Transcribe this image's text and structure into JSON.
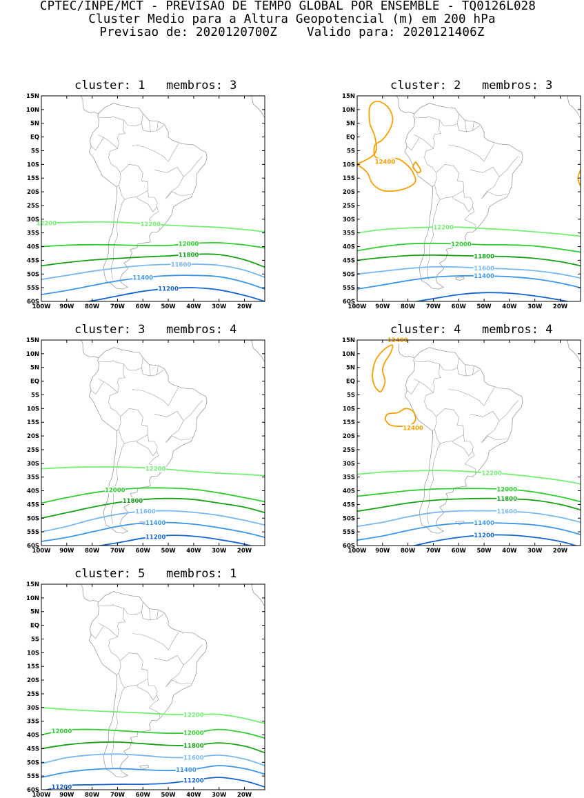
{
  "header": {
    "line1": "CPTEC/INPE/MCT - PREVISAO DE TEMPO GLOBAL POR ENSEMBLE - TQ0126L028",
    "line2": "Cluster Medio para a Altura Geopotencial (m) em 200 hPa",
    "line3": "Previsao de: 2020120700Z    Valido para: 2020121406Z"
  },
  "axes": {
    "lat_ticks": [
      "15N",
      "10N",
      "5N",
      "EQ",
      "5S",
      "10S",
      "15S",
      "20S",
      "25S",
      "30S",
      "35S",
      "40S",
      "45S",
      "50S",
      "55S",
      "60S"
    ],
    "lon_ticks": [
      "100W",
      "90W",
      "80W",
      "70W",
      "60W",
      "50W",
      "40W",
      "30W",
      "20W"
    ],
    "lat_range": [
      -60,
      15
    ],
    "lon_range": [
      -100,
      -12
    ]
  },
  "colors": {
    "c12400": "#f5a000",
    "c12200": "#74ef74",
    "c12000": "#2fcc2f",
    "c11800": "#15a015",
    "c11600": "#78b8f0",
    "c11400": "#3c96e8",
    "c11200": "#1464d2",
    "coast": "#9a9a9a"
  },
  "panels": [
    {
      "title": "cluster: 1   membros: 3",
      "lines": [
        {
          "level": "12200",
          "lat": [
            -31.5,
            -31.2,
            -31.0,
            -31.1,
            -31.6,
            -32.2,
            -32.6,
            -33.0,
            -33.8,
            -34.6
          ],
          "labels": [
            {
              "text": "12200",
              "lon": -98
            },
            {
              "text": "12200",
              "lon": -57
            }
          ]
        },
        {
          "level": "12000",
          "lat": [
            -40.0,
            -39.5,
            -39.3,
            -39.4,
            -39.6,
            -39.6,
            -38.8,
            -38.6,
            -39.4,
            -40.5
          ],
          "labels": [
            {
              "text": "12000",
              "lon": -42
            }
          ]
        },
        {
          "level": "11800",
          "lat": [
            -47.0,
            -45.8,
            -44.9,
            -44.3,
            -43.8,
            -43.4,
            -42.8,
            -42.9,
            -44.8,
            -47.5
          ],
          "labels": [
            {
              "text": "11800",
              "lon": -42
            }
          ]
        },
        {
          "level": "11600",
          "lat": [
            -52.0,
            -50.5,
            -49.0,
            -47.8,
            -46.9,
            -46.5,
            -46.4,
            -46.8,
            -48.6,
            -51.2
          ],
          "labels": [
            {
              "text": "11600",
              "lon": -45
            }
          ]
        },
        {
          "level": "11400",
          "lat": [
            -57.5,
            -56.0,
            -54.2,
            -52.5,
            -51.3,
            -50.6,
            -50.5,
            -51.0,
            -53.0,
            -55.5
          ],
          "labels": [
            {
              "text": "11400",
              "lon": -60
            }
          ]
        },
        {
          "level": "11200",
          "lat": [
            -62.0,
            -61.0,
            -59.8,
            -58.0,
            -56.3,
            -55.3,
            -55.0,
            -55.8,
            -57.8,
            -60.0
          ],
          "labels": [
            {
              "text": "11200",
              "lon": -50
            }
          ]
        }
      ],
      "closed": []
    },
    {
      "title": "cluster: 2   membros: 3",
      "lines": [
        {
          "level": "12200",
          "lat": [
            -35.0,
            -33.8,
            -33.2,
            -32.9,
            -32.9,
            -33.4,
            -33.9,
            -34.6,
            -35.4,
            -36.2
          ],
          "labels": [
            {
              "text": "12200",
              "lon": -66
            }
          ]
        },
        {
          "level": "12000",
          "lat": [
            -41.5,
            -40.0,
            -39.0,
            -38.8,
            -39.0,
            -39.3,
            -39.4,
            -39.8,
            -40.9,
            -42.0
          ],
          "labels": [
            {
              "text": "12000",
              "lon": -59
            }
          ]
        },
        {
          "level": "11800",
          "lat": [
            -45.0,
            -44.0,
            -43.3,
            -43.1,
            -43.3,
            -43.5,
            -43.7,
            -44.3,
            -45.5,
            -47.0
          ],
          "labels": [
            {
              "text": "11800",
              "lon": -50
            }
          ]
        },
        {
          "level": "11600",
          "lat": [
            -50.0,
            -49.0,
            -48.0,
            -47.4,
            -47.5,
            -47.9,
            -48.2,
            -48.8,
            -50.0,
            -51.5
          ],
          "labels": [
            {
              "text": "11600",
              "lon": -50
            }
          ]
        },
        {
          "level": "11400",
          "lat": [
            -55.5,
            -54.0,
            -52.4,
            -51.2,
            -50.7,
            -50.7,
            -51.0,
            -51.8,
            -53.3,
            -55.0
          ],
          "labels": [
            {
              "text": "11400",
              "lon": -50
            }
          ]
        },
        {
          "level": "11200",
          "lat": [
            -62.0,
            -61.5,
            -60.5,
            -59.0,
            -57.5,
            -56.8,
            -57.0,
            -58.0,
            -59.5,
            -61.0
          ],
          "labels": []
        }
      ],
      "closed": [
        {
          "level": "12400",
          "pts": [
            [
              -100,
              -10
            ],
            [
              -96,
              -13
            ],
            [
              -94,
              -17
            ],
            [
              -90,
              -19.5
            ],
            [
              -84,
              -19.5
            ],
            [
              -79,
              -18
            ],
            [
              -77,
              -16
            ],
            [
              -78,
              -13
            ],
            [
              -80,
              -10.5
            ],
            [
              -84,
              -8
            ],
            [
              -90,
              -8
            ],
            [
              -93,
              -7
            ],
            [
              -93,
              -3
            ],
            [
              -90,
              -1
            ],
            [
              -87,
              3
            ],
            [
              -86,
              7
            ],
            [
              -88,
              11
            ],
            [
              -92,
              13
            ],
            [
              -95,
              11
            ],
            [
              -95,
              5
            ],
            [
              -93,
              0
            ],
            [
              -93,
              -6
            ],
            [
              -100,
              -10
            ]
          ],
          "open": true,
          "labels": [
            {
              "text": "12400",
              "lon": -89,
              "lat": -9
            }
          ]
        },
        {
          "level": "12400",
          "pts": [
            [
              -77,
              -9
            ],
            [
              -75,
              -12
            ],
            [
              -76,
              -13
            ],
            [
              -78,
              -11
            ],
            [
              -77,
              -9
            ]
          ],
          "labels": []
        },
        {
          "level": "12400",
          "pts": [
            [
              -12,
              -12
            ],
            [
              -13,
              -15
            ],
            [
              -12,
              -18
            ]
          ],
          "open": true,
          "labels": []
        }
      ]
    },
    {
      "title": "cluster: 3   membros: 4",
      "lines": [
        {
          "level": "12200",
          "lat": [
            -32.0,
            -31.5,
            -31.3,
            -31.3,
            -31.6,
            -32.2,
            -33.0,
            -33.6,
            -34.0,
            -34.5
          ],
          "labels": [
            {
              "text": "12200",
              "lon": -55
            }
          ]
        },
        {
          "level": "12000",
          "lat": [
            -44.5,
            -42.5,
            -40.8,
            -39.6,
            -39.0,
            -39.0,
            -39.5,
            -40.8,
            -42.5,
            -44.0
          ],
          "labels": [
            {
              "text": "12000",
              "lon": -71
            }
          ]
        },
        {
          "level": "11800",
          "lat": [
            -50.0,
            -48.0,
            -46.0,
            -44.3,
            -43.2,
            -42.8,
            -43.2,
            -44.5,
            -46.0,
            -48.0
          ],
          "labels": [
            {
              "text": "11800",
              "lon": -64
            }
          ]
        },
        {
          "level": "11600",
          "lat": [
            -55.0,
            -53.0,
            -50.5,
            -48.6,
            -47.5,
            -47.3,
            -47.9,
            -49.0,
            -50.8,
            -52.5
          ],
          "labels": [
            {
              "text": "11600",
              "lon": -59
            }
          ]
        },
        {
          "level": "11400",
          "lat": [
            -58.5,
            -57.0,
            -55.0,
            -53.0,
            -51.8,
            -51.6,
            -52.2,
            -53.5,
            -55.2,
            -57.0
          ],
          "labels": [
            {
              "text": "11400",
              "lon": -55
            }
          ]
        },
        {
          "level": "11200",
          "lat": [
            -63.0,
            -62.0,
            -60.5,
            -59.0,
            -57.3,
            -56.3,
            -56.6,
            -57.8,
            -59.5,
            -61.5
          ],
          "labels": [
            {
              "text": "11200",
              "lon": -55
            }
          ]
        }
      ],
      "closed": []
    },
    {
      "title": "cluster: 4   membros: 4",
      "lines": [
        {
          "level": "12200",
          "lat": [
            -34.0,
            -33.2,
            -32.8,
            -32.6,
            -32.8,
            -33.4,
            -34.0,
            -35.0,
            -36.2,
            -37.5
          ],
          "labels": [
            {
              "text": "12200",
              "lon": -47
            }
          ]
        },
        {
          "level": "12000",
          "lat": [
            -42.0,
            -41.0,
            -40.0,
            -39.4,
            -39.2,
            -39.2,
            -39.5,
            -40.5,
            -42.2,
            -44.0
          ],
          "labels": [
            {
              "text": "12000",
              "lon": -41
            }
          ]
        },
        {
          "level": "11800",
          "lat": [
            -47.5,
            -46.0,
            -44.5,
            -43.5,
            -43.0,
            -42.8,
            -42.9,
            -43.5,
            -45.0,
            -47.0
          ],
          "labels": [
            {
              "text": "11800",
              "lon": -41
            }
          ]
        },
        {
          "level": "11600",
          "lat": [
            -53.0,
            -51.5,
            -49.5,
            -48.0,
            -47.4,
            -47.3,
            -47.5,
            -48.2,
            -49.7,
            -51.5
          ],
          "labels": [
            {
              "text": "11600",
              "lon": -41
            }
          ]
        },
        {
          "level": "11400",
          "lat": [
            -58.0,
            -56.5,
            -54.5,
            -52.8,
            -51.9,
            -51.7,
            -51.9,
            -52.5,
            -54.0,
            -56.0
          ],
          "labels": [
            {
              "text": "11400",
              "lon": -50
            }
          ]
        },
        {
          "level": "11200",
          "lat": [
            -63.0,
            -62.0,
            -60.5,
            -58.5,
            -57.0,
            -56.2,
            -56.2,
            -57.0,
            -58.5,
            -60.5
          ],
          "labels": [
            {
              "text": "11200",
              "lon": -50
            }
          ]
        }
      ],
      "closed": [
        {
          "level": "12400",
          "pts": [
            [
              -91,
              -4
            ],
            [
              -93,
              -2
            ],
            [
              -94,
              2
            ],
            [
              -93,
              7
            ],
            [
              -91,
              10
            ],
            [
              -88,
              12.5
            ],
            [
              -86,
              13
            ],
            [
              -87,
              10
            ],
            [
              -89,
              7
            ],
            [
              -90,
              4
            ],
            [
              -89,
              0
            ],
            [
              -90,
              -3
            ],
            [
              -91,
              -4
            ]
          ],
          "labels": [
            {
              "text": "12400",
              "lon": -84,
              "lat": 15
            }
          ]
        },
        {
          "level": "12400",
          "pts": [
            [
              -89,
              -14
            ],
            [
              -87,
              -16
            ],
            [
              -83,
              -16.5
            ],
            [
              -79,
              -16
            ],
            [
              -77,
              -14
            ],
            [
              -78,
              -11
            ],
            [
              -81,
              -10
            ],
            [
              -84,
              -11.5
            ],
            [
              -88,
              -12
            ],
            [
              -89,
              -14
            ]
          ],
          "labels": [
            {
              "text": "12400",
              "lon": -78,
              "lat": -17
            }
          ]
        }
      ]
    },
    {
      "title": "cluster: 5   membros: 1",
      "lines": [
        {
          "level": "12200",
          "lat": [
            -30.0,
            -30.7,
            -31.2,
            -31.6,
            -32.0,
            -32.5,
            -32.6,
            -32.5,
            -34.0,
            -35.8
          ],
          "labels": [
            {
              "text": "12200",
              "lon": -40
            }
          ]
        },
        {
          "level": "12000",
          "lat": [
            -40.0,
            -38.2,
            -38.0,
            -38.4,
            -39.0,
            -39.4,
            -39.2,
            -38.0,
            -39.2,
            -41.2
          ],
          "labels": [
            {
              "text": "12000",
              "lon": -92
            },
            {
              "text": "12000",
              "lon": -40
            }
          ]
        },
        {
          "level": "11800",
          "lat": [
            -45.0,
            -43.6,
            -42.8,
            -42.6,
            -43.2,
            -43.8,
            -43.8,
            -42.9,
            -44.1,
            -46.5
          ],
          "labels": [
            {
              "text": "11800",
              "lon": -40
            }
          ]
        },
        {
          "level": "11600",
          "lat": [
            -50.5,
            -48.3,
            -47.3,
            -47.0,
            -47.5,
            -48.2,
            -48.2,
            -47.4,
            -48.8,
            -51.2
          ],
          "labels": [
            {
              "text": "11600",
              "lon": -40
            }
          ]
        },
        {
          "level": "11400",
          "lat": [
            -55.5,
            -53.6,
            -52.6,
            -52.3,
            -52.7,
            -53.0,
            -52.5,
            -51.2,
            -52.3,
            -54.3
          ],
          "labels": [
            {
              "text": "11400",
              "lon": -43
            }
          ]
        },
        {
          "level": "11200",
          "lat": [
            -60.5,
            -58.5,
            -58.2,
            -58.0,
            -58.0,
            -57.6,
            -56.5,
            -55.5,
            -56.8,
            -59.0
          ],
          "labels": [
            {
              "text": "11200",
              "lon": -92
            },
            {
              "text": "11200",
              "lon": -40
            }
          ]
        }
      ],
      "closed": []
    }
  ]
}
